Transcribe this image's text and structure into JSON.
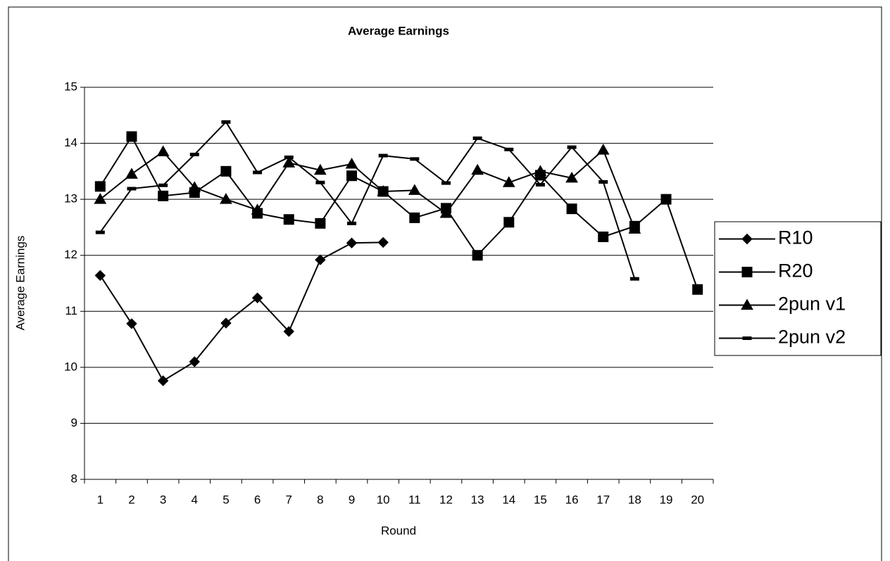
{
  "chart_data": {
    "type": "line",
    "title": "Average Earnings",
    "x_label": "Round",
    "y_label": "Average Earnings",
    "categories": [
      "1",
      "2",
      "3",
      "4",
      "5",
      "6",
      "7",
      "8",
      "9",
      "10",
      "11",
      "12",
      "13",
      "14",
      "15",
      "16",
      "17",
      "18",
      "19",
      "20"
    ],
    "ylim": [
      8,
      15
    ],
    "yticks": [
      8,
      9,
      10,
      11,
      12,
      13,
      14,
      15
    ],
    "grid": true,
    "legend": "right",
    "series": [
      {
        "name": "R10",
        "color": "#000000",
        "marker": "diamond",
        "values": [
          11.64,
          10.78,
          9.76,
          10.1,
          10.79,
          11.24,
          10.64,
          11.92,
          12.22,
          12.23,
          null,
          null,
          null,
          null,
          null,
          null,
          null,
          null,
          null,
          null
        ]
      },
      {
        "name": "R20",
        "color": "#000000",
        "marker": "square",
        "values": [
          13.23,
          14.12,
          13.06,
          13.12,
          13.5,
          12.75,
          12.64,
          12.57,
          13.42,
          13.14,
          12.67,
          12.84,
          12.0,
          12.59,
          13.43,
          12.83,
          12.33,
          12.52,
          13.0,
          11.39
        ]
      },
      {
        "name": "2pun v1",
        "color": "#000000",
        "marker": "triangle",
        "values": [
          13.0,
          13.45,
          13.85,
          13.21,
          13.0,
          12.81,
          13.65,
          13.52,
          13.63,
          13.14,
          13.16,
          12.75,
          13.52,
          13.3,
          13.5,
          13.38,
          13.88,
          12.47,
          null,
          null
        ]
      },
      {
        "name": "2pun v2",
        "color": "#000000",
        "marker": "dash",
        "values": [
          12.41,
          13.19,
          13.25,
          13.8,
          14.38,
          13.48,
          13.75,
          13.3,
          12.57,
          13.78,
          13.72,
          13.29,
          14.09,
          13.89,
          13.26,
          13.93,
          13.31,
          11.58,
          null,
          null
        ]
      }
    ]
  }
}
